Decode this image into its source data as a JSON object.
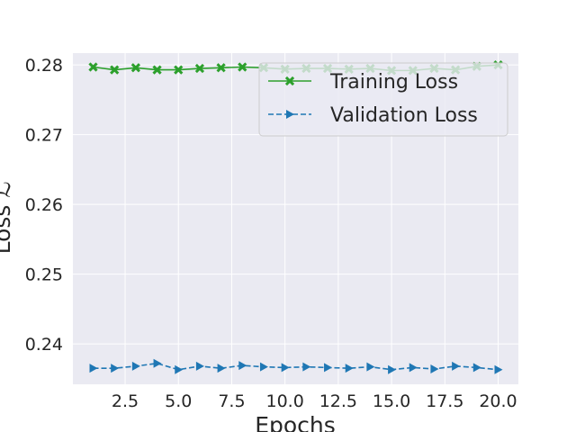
{
  "chart_data": {
    "type": "line",
    "xlabel": "Epochs",
    "ylabel": "Loss ℒ",
    "xlim": [
      0.05,
      20.95
    ],
    "ylim": [
      0.2342,
      0.2817
    ],
    "xticks": [
      2.5,
      5.0,
      7.5,
      10.0,
      12.5,
      15.0,
      17.5,
      20.0
    ],
    "xtick_labels": [
      "2.5",
      "5.0",
      "7.5",
      "10.0",
      "12.5",
      "15.0",
      "17.5",
      "20.0"
    ],
    "yticks": [
      0.24,
      0.25,
      0.26,
      0.27,
      0.28
    ],
    "ytick_labels": [
      "0.24",
      "0.25",
      "0.26",
      "0.27",
      "0.28"
    ],
    "grid": true,
    "legend_position": "upper right",
    "x": [
      1,
      2,
      3,
      4,
      5,
      6,
      7,
      8,
      9,
      10,
      11,
      12,
      13,
      14,
      15,
      16,
      17,
      18,
      19,
      20
    ],
    "series": [
      {
        "name": "Training Loss",
        "color": "#2ca02c",
        "marker": "x",
        "linestyle": "solid",
        "values": [
          0.2797,
          0.2793,
          0.2796,
          0.2793,
          0.2793,
          0.2795,
          0.2796,
          0.2797,
          0.2796,
          0.2794,
          0.2795,
          0.2795,
          0.2794,
          0.2795,
          0.2792,
          0.2792,
          0.2795,
          0.2793,
          0.2798,
          0.28
        ]
      },
      {
        "name": "Validation Loss",
        "color": "#1f77b4",
        "marker": "triangle-right",
        "linestyle": "dashed",
        "values": [
          0.2365,
          0.2365,
          0.2368,
          0.2372,
          0.2363,
          0.2368,
          0.2365,
          0.2369,
          0.2367,
          0.2366,
          0.2367,
          0.2366,
          0.2365,
          0.2367,
          0.2363,
          0.2366,
          0.2364,
          0.2368,
          0.2366,
          0.2363
        ]
      }
    ]
  }
}
